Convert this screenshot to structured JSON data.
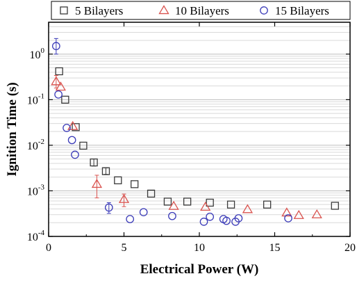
{
  "chart_data": {
    "type": "scatter",
    "xlabel": "Electrical Power (W)",
    "ylabel": "Ignition Time (s)",
    "xlim": [
      0,
      20
    ],
    "ylim": [
      0.0001,
      5
    ],
    "yscale": "log",
    "x_ticks": [
      0,
      5,
      10,
      15,
      20
    ],
    "x_tick_labels": [
      "0",
      "5",
      "10",
      "15",
      "20"
    ],
    "y_ticks": [
      0.0001,
      0.001,
      0.01,
      0.1,
      1
    ],
    "y_tick_labels": [
      {
        "base": "10",
        "exp": "-4"
      },
      {
        "base": "10",
        "exp": "-3"
      },
      {
        "base": "10",
        "exp": "-2"
      },
      {
        "base": "10",
        "exp": "-1"
      },
      {
        "base": "10",
        "exp": "0"
      }
    ],
    "grid": true,
    "legend_position": "top",
    "series": [
      {
        "name": "5 Bilayers",
        "marker": "square",
        "color": "#3a3a3a",
        "points": [
          {
            "x": 0.7,
            "y": 0.42
          },
          {
            "x": 1.1,
            "y": 0.1
          },
          {
            "x": 1.8,
            "y": 0.025
          },
          {
            "x": 2.3,
            "y": 0.0098
          },
          {
            "x": 3.0,
            "y": 0.0042,
            "yerr": [
              0.0035,
              0.005
            ]
          },
          {
            "x": 3.8,
            "y": 0.0027,
            "yerr": [
              0.0023,
              0.0032
            ]
          },
          {
            "x": 4.6,
            "y": 0.0017
          },
          {
            "x": 5.7,
            "y": 0.0014
          },
          {
            "x": 6.8,
            "y": 0.00087
          },
          {
            "x": 7.9,
            "y": 0.00058
          },
          {
            "x": 9.2,
            "y": 0.00058
          },
          {
            "x": 10.7,
            "y": 0.00055
          },
          {
            "x": 12.1,
            "y": 0.0005
          },
          {
            "x": 14.5,
            "y": 0.0005
          },
          {
            "x": 19.0,
            "y": 0.00047
          }
        ]
      },
      {
        "name": "10 Bilayers",
        "marker": "triangle",
        "color": "#d9534f",
        "points": [
          {
            "x": 0.5,
            "y": 0.25,
            "yerr": [
              0.18,
              0.34
            ]
          },
          {
            "x": 0.8,
            "y": 0.19
          },
          {
            "x": 1.6,
            "y": 0.026
          },
          {
            "x": 3.2,
            "y": 0.0014,
            "yerr": [
              0.0007,
              0.0022
            ]
          },
          {
            "x": 5.0,
            "y": 0.00065,
            "yerr": [
              0.00045,
              0.00085
            ]
          },
          {
            "x": 8.3,
            "y": 0.00046
          },
          {
            "x": 10.4,
            "y": 0.00044
          },
          {
            "x": 13.2,
            "y": 0.00039
          },
          {
            "x": 15.8,
            "y": 0.00033
          },
          {
            "x": 16.6,
            "y": 0.00029
          },
          {
            "x": 17.8,
            "y": 0.0003
          }
        ]
      },
      {
        "name": "15 Bilayers",
        "marker": "circle",
        "color": "#3b3bb8",
        "points": [
          {
            "x": 0.5,
            "y": 1.5,
            "yerr": [
              1.0,
              2.2
            ]
          },
          {
            "x": 0.65,
            "y": 0.13
          },
          {
            "x": 1.2,
            "y": 0.024
          },
          {
            "x": 1.55,
            "y": 0.013
          },
          {
            "x": 1.75,
            "y": 0.0062
          },
          {
            "x": 4.0,
            "y": 0.00043,
            "yerr": [
              0.00032,
              0.00055
            ]
          },
          {
            "x": 5.4,
            "y": 0.00024
          },
          {
            "x": 6.3,
            "y": 0.00034
          },
          {
            "x": 8.2,
            "y": 0.00028
          },
          {
            "x": 10.3,
            "y": 0.00021
          },
          {
            "x": 10.7,
            "y": 0.00027
          },
          {
            "x": 11.6,
            "y": 0.00024
          },
          {
            "x": 11.8,
            "y": 0.00022
          },
          {
            "x": 12.4,
            "y": 0.00021
          },
          {
            "x": 12.6,
            "y": 0.00025
          },
          {
            "x": 15.9,
            "y": 0.00025
          }
        ]
      }
    ]
  }
}
